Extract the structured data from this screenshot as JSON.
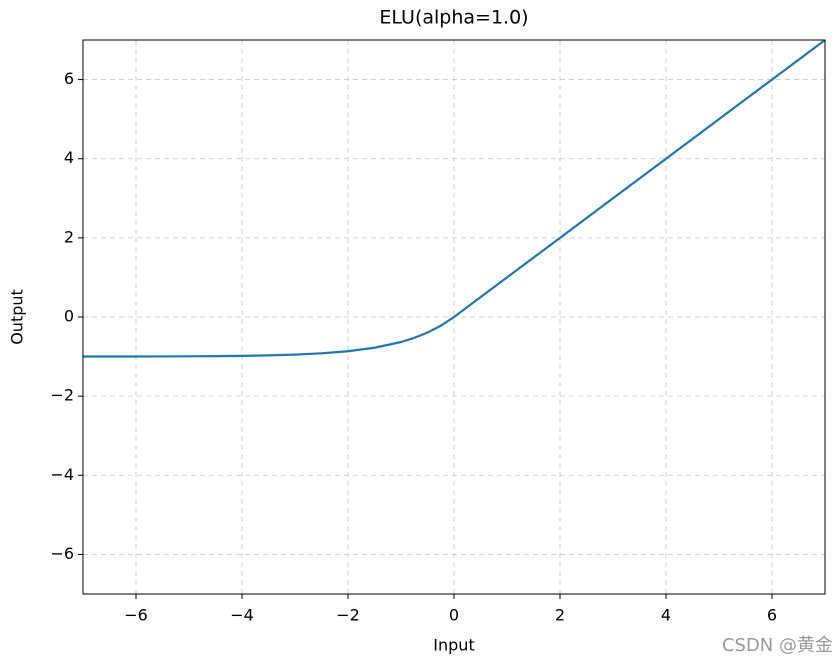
{
  "chart_data": {
    "type": "line",
    "title": "ELU(alpha=1.0)",
    "x_label": "Input",
    "y_label": "Output",
    "x": [
      -7,
      -6.5,
      -6,
      -5.5,
      -5,
      -4.5,
      -4,
      -3.5,
      -3,
      -2.5,
      -2,
      -1.5,
      -1,
      -0.75,
      -0.5,
      -0.25,
      0,
      1,
      2,
      3,
      4,
      5,
      6,
      7
    ],
    "series": [
      {
        "color": "#1f77b4",
        "values": [
          -0.999,
          -0.998,
          -0.998,
          -0.996,
          -0.993,
          -0.989,
          -0.982,
          -0.97,
          -0.95,
          -0.918,
          -0.865,
          -0.777,
          -0.632,
          -0.528,
          -0.393,
          -0.221,
          0,
          1,
          2,
          3,
          4,
          5,
          6,
          7
        ]
      }
    ],
    "xlim": [
      -7,
      7
    ],
    "ylim": [
      -7,
      7
    ],
    "xticks": [
      {
        "value": -6,
        "label": "−6"
      },
      {
        "value": -4,
        "label": "−4"
      },
      {
        "value": -2,
        "label": "−2"
      },
      0,
      2,
      4,
      6
    ],
    "yticks": [
      {
        "value": -6,
        "label": "−6"
      },
      {
        "value": -4,
        "label": "−4"
      },
      {
        "value": -2,
        "label": "−2"
      },
      0,
      2,
      4,
      6
    ],
    "grid": true,
    "watermark": "CSDN @黄金"
  }
}
